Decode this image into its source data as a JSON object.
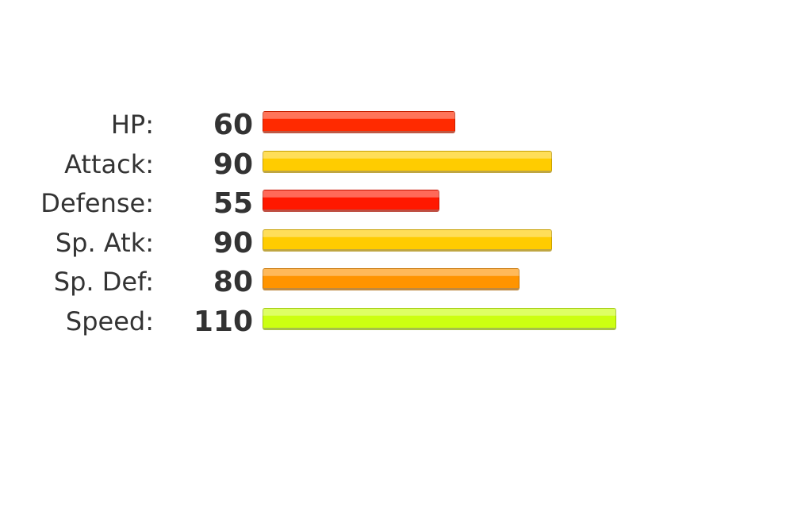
{
  "stats": [
    {
      "label": "HP:",
      "value": "60",
      "fraction": 0.545,
      "color": "#ff2a00"
    },
    {
      "label": "Attack:",
      "value": "90",
      "fraction": 0.818,
      "color": "#ffcc00"
    },
    {
      "label": "Defense:",
      "value": "55",
      "fraction": 0.5,
      "color": "#ff1800"
    },
    {
      "label": "Sp. Atk:",
      "value": "90",
      "fraction": 0.818,
      "color": "#ffcc00"
    },
    {
      "label": "Sp. Def:",
      "value": "80",
      "fraction": 0.727,
      "color": "#ff9400"
    },
    {
      "label": "Speed:",
      "value": "110",
      "fraction": 1.0,
      "color": "#ccff11"
    }
  ]
}
